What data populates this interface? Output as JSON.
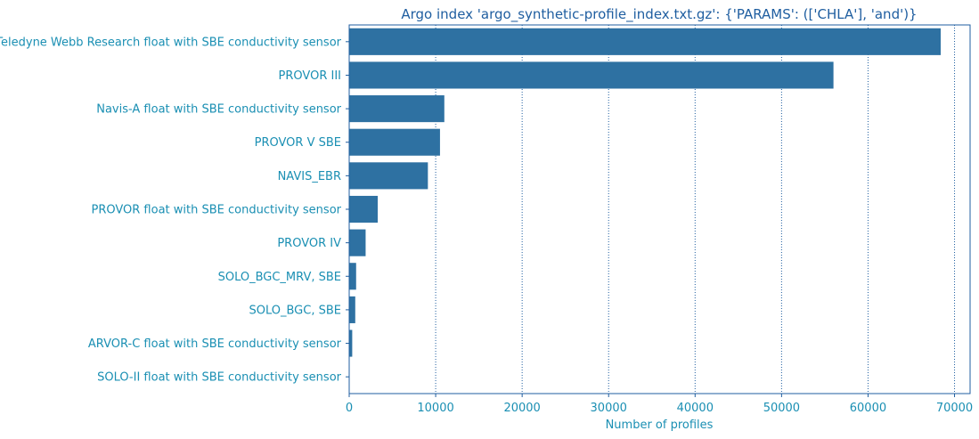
{
  "chart_data": {
    "type": "bar",
    "orientation": "horizontal",
    "title": "Argo index 'argo_synthetic-profile_index.txt.gz': {'PARAMS': (['CHLA'], 'and')}",
    "xlabel": "Number of profiles",
    "ylabel": "",
    "xlim": [
      0,
      71800
    ],
    "xticks": [
      0,
      10000,
      20000,
      30000,
      40000,
      50000,
      60000,
      70000
    ],
    "xtick_labels": [
      "0",
      "10000",
      "20000",
      "30000",
      "40000",
      "50000",
      "60000",
      "70000"
    ],
    "grid": "x-dotted",
    "categories": [
      "Teledyne Webb Research float with SBE conductivity sensor",
      "PROVOR III",
      "Navis-A float with SBE conductivity sensor",
      "PROVOR V SBE",
      "NAVIS_EBR",
      "PROVOR float with SBE conductivity sensor",
      "PROVOR IV",
      "SOLO_BGC_MRV, SBE",
      "SOLO_BGC, SBE",
      "ARVOR-C float with SBE conductivity sensor",
      "SOLO-II float with SBE conductivity sensor"
    ],
    "values": [
      68400,
      56000,
      11000,
      10500,
      9100,
      3300,
      1900,
      800,
      700,
      350,
      30
    ],
    "colors": {
      "bar": "#2e71a2",
      "text": "#1a8fb3",
      "title": "#1f5ea0",
      "axis": "#1f5ea0",
      "grid": "#1f5ea0"
    }
  }
}
